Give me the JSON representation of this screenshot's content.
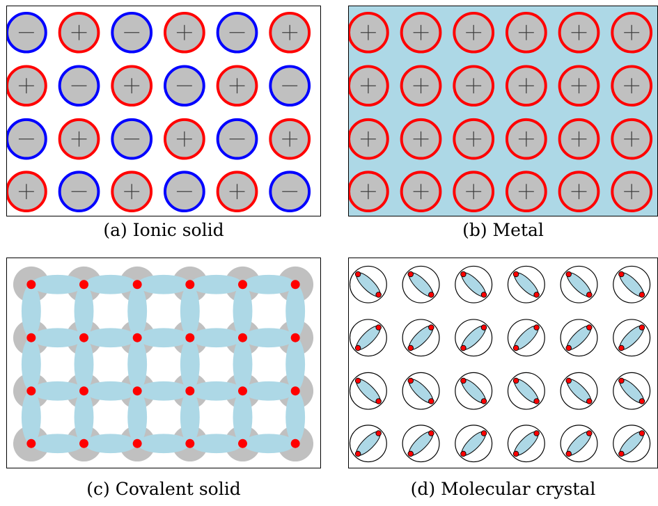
{
  "figure": {
    "panels": [
      {
        "id": "a",
        "caption": "(a) Ionic solid",
        "pattern": [
          [
            "-",
            "+",
            "-",
            "+",
            "-",
            "+"
          ],
          [
            "+",
            "-",
            "+",
            "-",
            "+",
            "-"
          ],
          [
            "-",
            "+",
            "-",
            "+",
            "-",
            "+"
          ],
          [
            "+",
            "-",
            "+",
            "-",
            "+",
            "-"
          ]
        ]
      },
      {
        "id": "b",
        "caption": "(b) Metal",
        "pattern": [
          [
            "+",
            "+",
            "+",
            "+",
            "+",
            "+"
          ],
          [
            "+",
            "+",
            "+",
            "+",
            "+",
            "+"
          ],
          [
            "+",
            "+",
            "+",
            "+",
            "+",
            "+"
          ],
          [
            "+",
            "+",
            "+",
            "+",
            "+",
            "+"
          ]
        ]
      },
      {
        "id": "c",
        "caption": "(c) Covalent solid",
        "rows": 4,
        "cols": 6
      },
      {
        "id": "d",
        "caption": "(d) Molecular crystal",
        "orientation_rows": [
          "down-right",
          "up-right",
          "down-right",
          "up-right"
        ],
        "cols": 6
      }
    ]
  },
  "colors": {
    "positive": "#ff0000",
    "negative": "#0000ff",
    "ion_fill": "#c0c0c0",
    "electron_sea": "#add8e6",
    "bond": "#add8e6",
    "atom": "#ff0000",
    "atom_core": "#c0c0c0"
  },
  "glyphs": {
    "plus": "+",
    "minus": "−"
  }
}
